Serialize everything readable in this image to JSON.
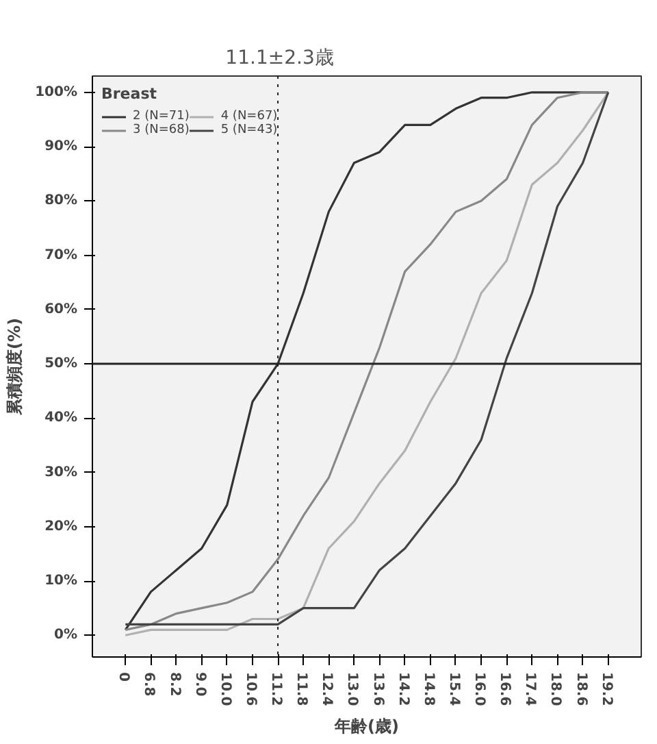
{
  "chart_data": {
    "type": "line",
    "xlabel": "年齢(歳)",
    "ylabel": "累積頻度(%)",
    "legend_title": "Breast",
    "categories": [
      "0",
      "6.8",
      "8.2",
      "9.0",
      "10.0",
      "10.6",
      "11.2",
      "11.8",
      "12.4",
      "13.0",
      "13.6",
      "14.2",
      "14.8",
      "15.4",
      "16.0",
      "16.6",
      "17.4",
      "18.0",
      "18.6",
      "19.2"
    ],
    "series": [
      {
        "name": "2 (N=71)",
        "color": "#333333",
        "values": [
          1,
          8,
          12,
          16,
          24,
          43,
          50,
          63,
          78,
          87,
          89,
          94,
          94,
          97,
          99,
          99,
          100,
          100,
          100,
          100
        ]
      },
      {
        "name": "3 (N=68)",
        "color": "#888888",
        "values": [
          1,
          2,
          4,
          5,
          6,
          8,
          14,
          22,
          29,
          41,
          53,
          67,
          72,
          78,
          80,
          84,
          94,
          99,
          100,
          100
        ]
      },
      {
        "name": "4 (N=67)",
        "color": "#b0b0b0",
        "values": [
          0,
          1,
          1,
          1,
          1,
          3,
          3,
          5,
          16,
          21,
          28,
          34,
          43,
          51,
          63,
          69,
          83,
          87,
          93,
          100
        ]
      },
      {
        "name": "5 (N=43)",
        "color": "#444444",
        "values": [
          2,
          2,
          2,
          2,
          2,
          2,
          2,
          5,
          5,
          5,
          12,
          16,
          22,
          28,
          36,
          51,
          63,
          79,
          87,
          100
        ]
      }
    ],
    "ylim": [
      -4,
      103
    ],
    "yticks": [
      {
        "value": 0,
        "label": "0%"
      },
      {
        "value": 10,
        "label": "10%"
      },
      {
        "value": 20,
        "label": "20%"
      },
      {
        "value": 30,
        "label": "30%"
      },
      {
        "value": 40,
        "label": "40%"
      },
      {
        "value": 50,
        "label": "50%"
      },
      {
        "value": 60,
        "label": "60%"
      },
      {
        "value": 70,
        "label": "70%"
      },
      {
        "value": 80,
        "label": "80%"
      },
      {
        "value": 90,
        "label": "90%"
      },
      {
        "value": 100,
        "label": "100%"
      }
    ],
    "ref_lines": [
      {
        "axis": "x",
        "value": "11.2",
        "label": "11.1±2.3歳",
        "line_style": "dotted"
      },
      {
        "axis": "y",
        "value": 50
      }
    ],
    "grid": false,
    "legend": "top left",
    "marker": "none",
    "line_style": "solid"
  }
}
